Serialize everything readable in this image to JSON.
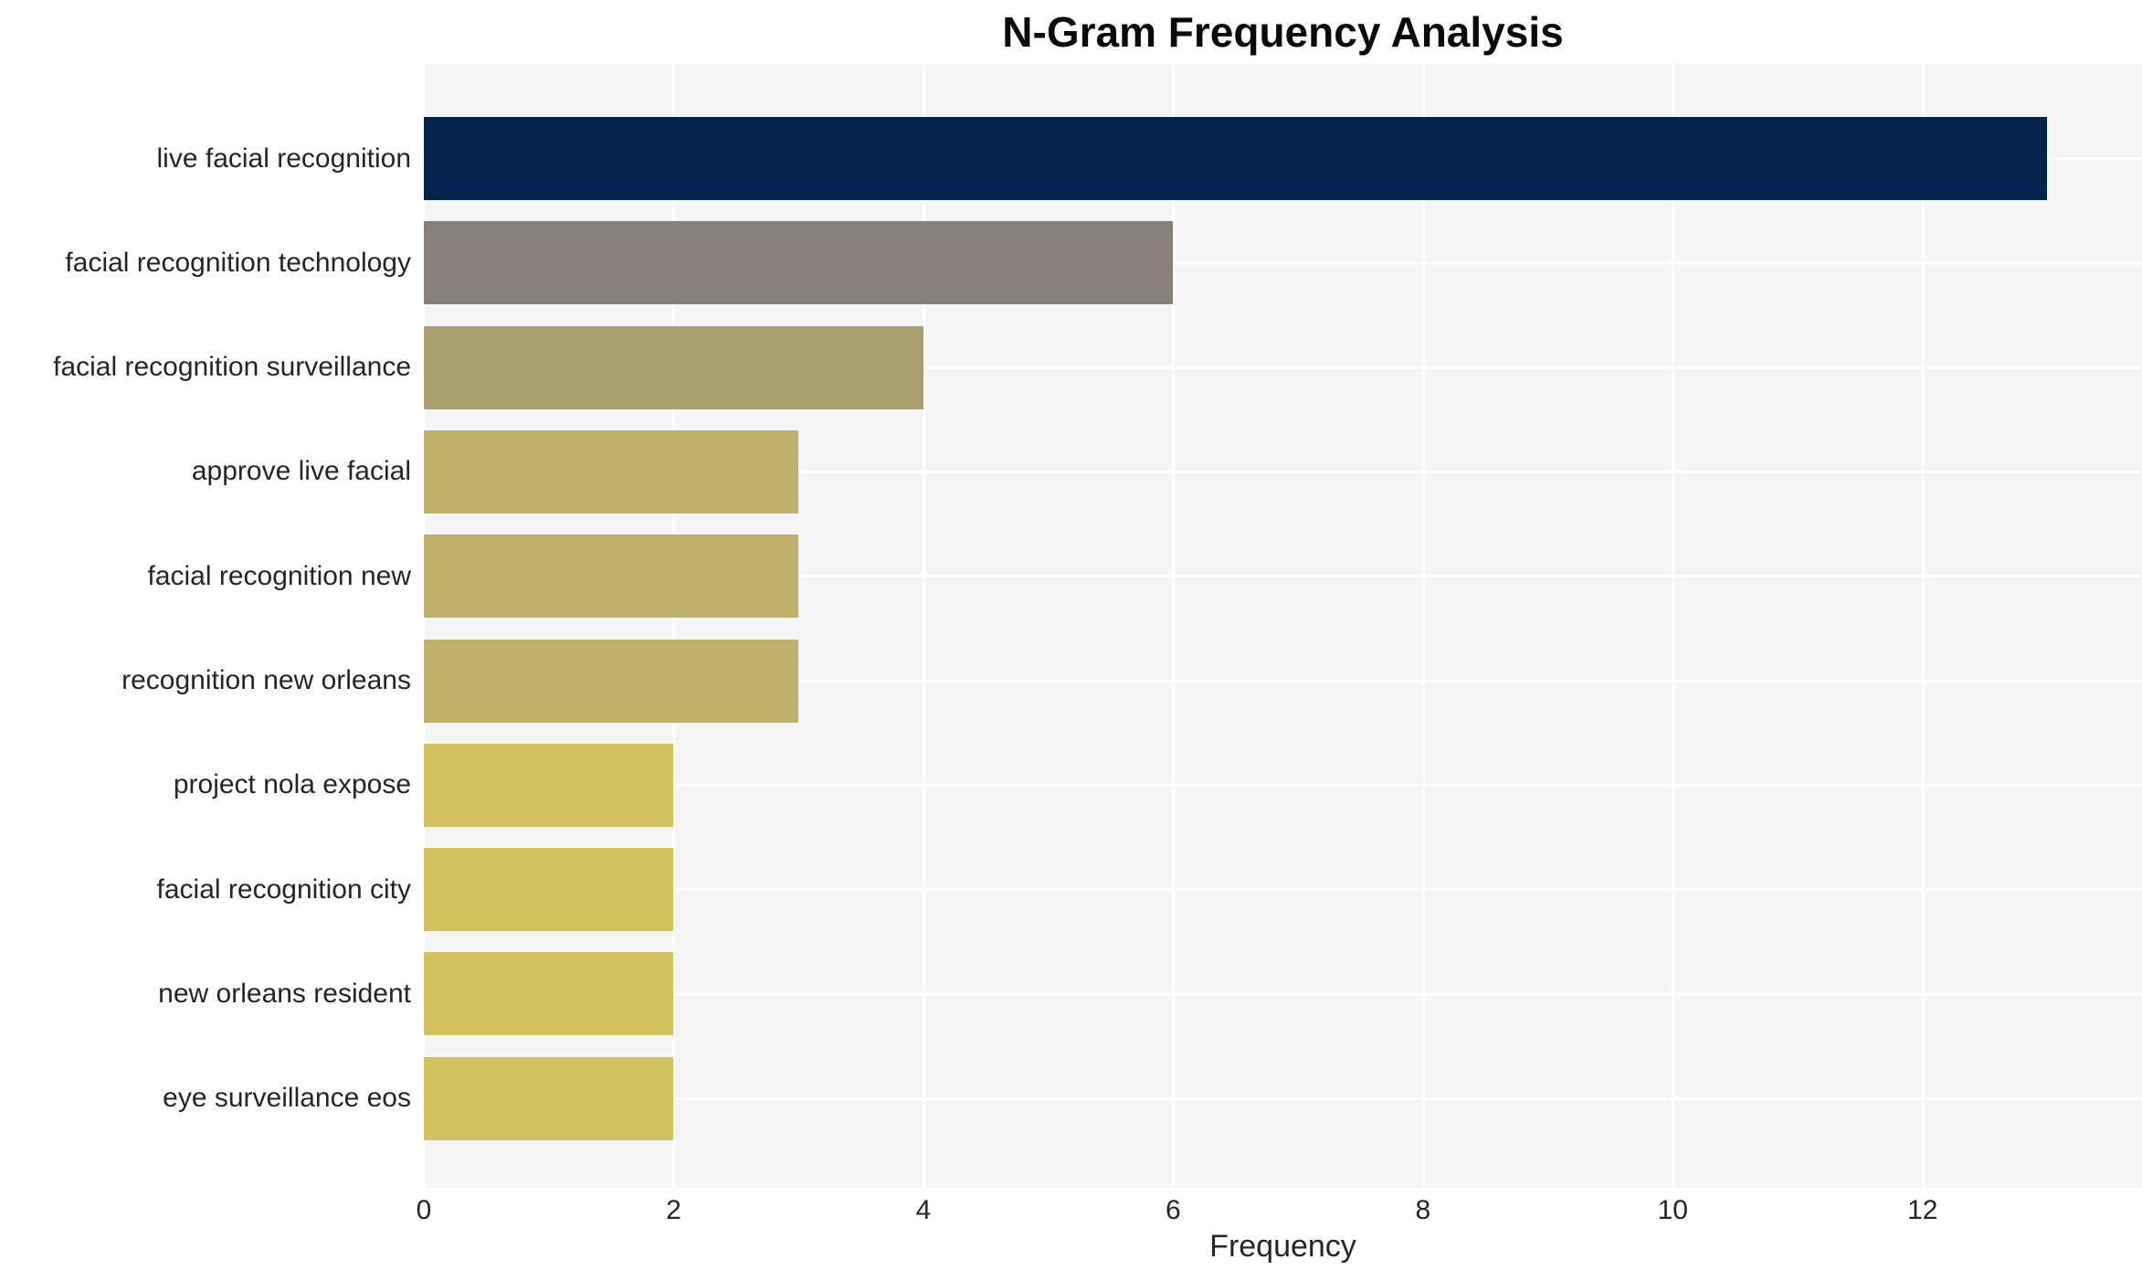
{
  "title": "N-Gram Frequency Analysis",
  "chart_data": {
    "type": "bar",
    "orientation": "horizontal",
    "title": "N-Gram Frequency Analysis",
    "xlabel": "Frequency",
    "ylabel": "",
    "categories": [
      "live facial recognition",
      "facial recognition technology",
      "facial recognition surveillance",
      "approve live facial",
      "facial recognition new",
      "recognition new orleans",
      "project nola expose",
      "facial recognition city",
      "new orleans resident",
      "eye surveillance eos"
    ],
    "values": [
      13,
      6,
      4,
      3,
      3,
      3,
      2,
      2,
      2,
      2
    ],
    "bar_colors": [
      "#02234d",
      "#858078",
      "#aaa06d",
      "#bfb169",
      "#bfb169",
      "#bfb169",
      "#d2c25d",
      "#d2c25d",
      "#d2c25d",
      "#d2c25d"
    ],
    "x_ticks": [
      0,
      2,
      4,
      6,
      8,
      10,
      12
    ],
    "xlim": [
      0,
      13.76
    ],
    "grid": true,
    "legend": "none",
    "plot_bg_color": "#f5f5f6",
    "grid_color": "#ffffff",
    "figure_bg_color": "#ffffff",
    "text_color": "#262626",
    "title_color": "#0a0a0a"
  }
}
